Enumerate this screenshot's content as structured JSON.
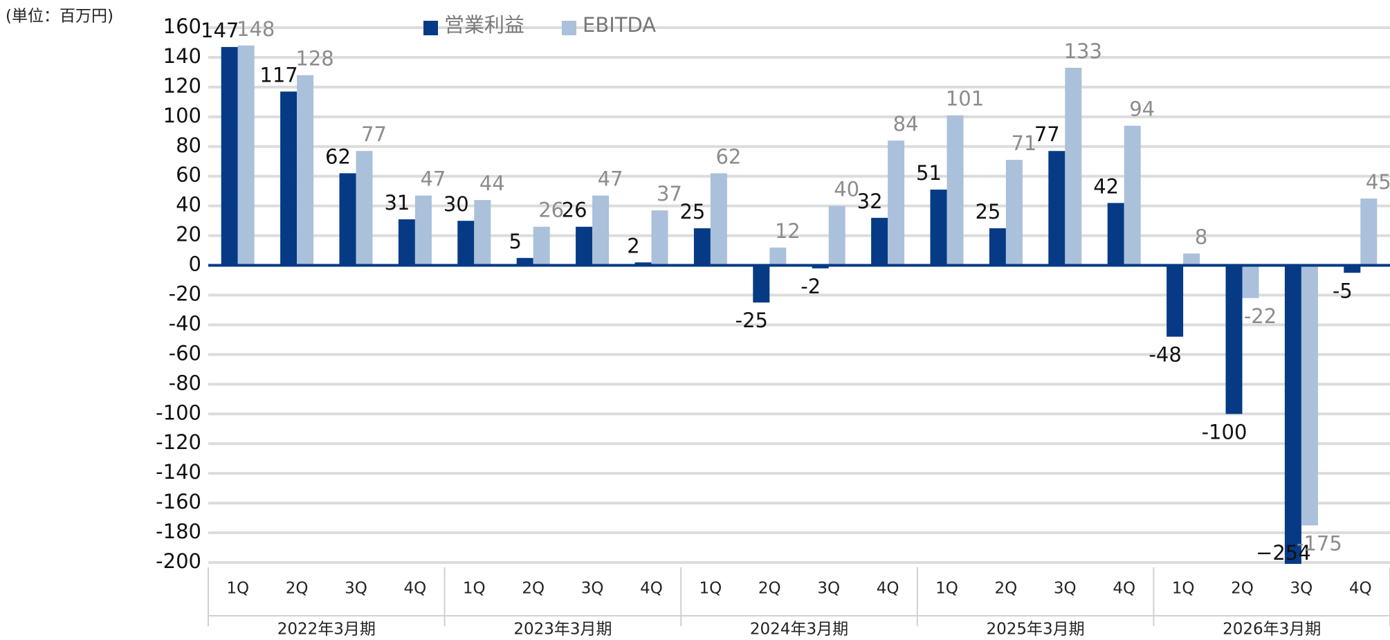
{
  "chart_data": {
    "type": "bar",
    "unit": "(単位：百万円)",
    "categories": [
      "1Q",
      "2Q",
      "3Q",
      "4Q",
      "1Q",
      "2Q",
      "3Q",
      "4Q",
      "1Q",
      "2Q",
      "3Q",
      "4Q",
      "1Q",
      "2Q",
      "3Q",
      "4Q",
      "1Q",
      "2Q",
      "3Q",
      "4Q"
    ],
    "groups": [
      "2022年3月期",
      "2023年3月期",
      "2024年3月期",
      "2025年3月期",
      "2026年3月期"
    ],
    "series": [
      {
        "name": "営業利益",
        "color": "#063a84",
        "label_color": "#111111",
        "values": [
          147,
          117,
          62,
          31,
          30,
          5,
          26,
          2,
          25,
          -25,
          -2,
          32,
          51,
          25,
          77,
          42,
          -48,
          -100,
          -254,
          -5
        ],
        "value_labels": [
          "147",
          "117",
          "62",
          "31",
          "30",
          "5",
          "26",
          "2",
          "25",
          "-25",
          "-2",
          "32",
          "51",
          "25",
          "77",
          "42",
          "-48",
          "-100",
          "−254",
          "-5"
        ]
      },
      {
        "name": "EBITDA",
        "color": "#abc0da",
        "label_color": "#8c8c8c",
        "values": [
          148,
          128,
          77,
          47,
          44,
          26,
          47,
          37,
          62,
          12,
          40,
          84,
          101,
          71,
          133,
          94,
          8,
          -22,
          -175,
          45
        ]
      }
    ],
    "ylim": [
      -200,
      160
    ],
    "yticks": [
      -200,
      -180,
      -160,
      -140,
      -120,
      -100,
      -80,
      -60,
      -40,
      -20,
      0,
      20,
      40,
      60,
      80,
      100,
      120,
      140,
      160
    ],
    "grid": true
  }
}
